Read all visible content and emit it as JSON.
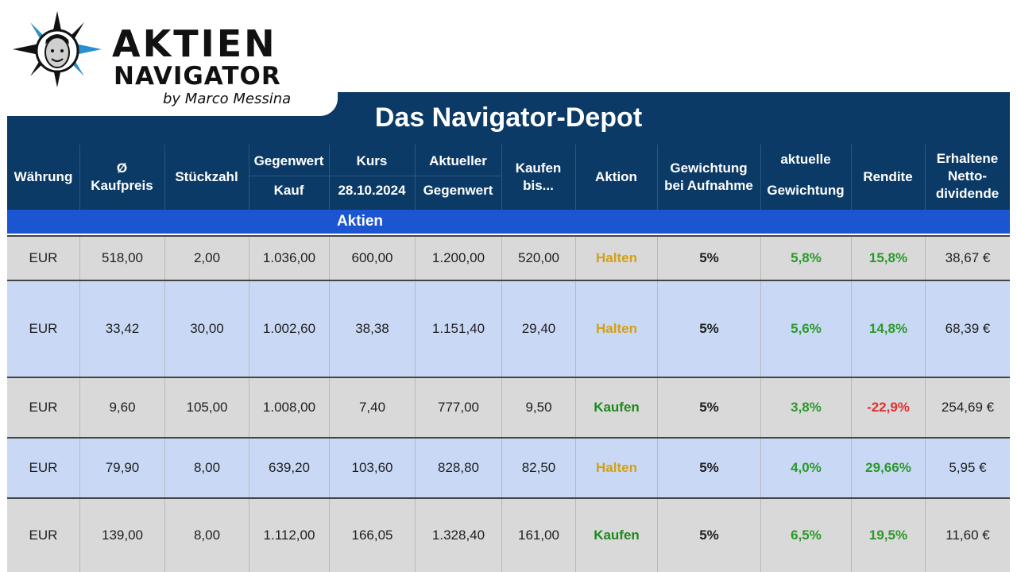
{
  "brand": {
    "line1": "AKTIEN",
    "line2": "NAVIGATOR",
    "line3": "by Marco Messina"
  },
  "table": {
    "title": "Das Navigator-Depot",
    "section_label": "Aktien",
    "headers": {
      "waehrung": "Währung",
      "kaufpreis_1": "Ø",
      "kaufpreis_2": "Kaufpreis",
      "stueckzahl": "Stückzahl",
      "gegenwert_kauf_1": "Gegenwert",
      "gegenwert_kauf_2": "Kauf",
      "kurs_1": "Kurs",
      "kurs_2": "28.10.2024",
      "akt_gegenwert_1": "Aktueller",
      "akt_gegenwert_2": "Gegenwert",
      "kaufen_bis_1": "Kaufen",
      "kaufen_bis_2": "bis...",
      "aktion": "Aktion",
      "gewichtung_1": "Gewichtung",
      "gewichtung_2": "bei Aufnahme",
      "akt_gewichtung_1": "aktuelle",
      "akt_gewichtung_2": "Gewichtung",
      "rendite": "Rendite",
      "dividende_1": "Erhaltene",
      "dividende_2": "Netto-",
      "dividende_3": "dividende"
    },
    "rows": [
      [
        "EUR",
        "518,00",
        "2,00",
        "1.036,00",
        "600,00",
        "1.200,00",
        "520,00",
        "Halten",
        "5%",
        "5,8%",
        "15,8%",
        "38,67 €"
      ],
      [
        "EUR",
        "33,42",
        "30,00",
        "1.002,60",
        "38,38",
        "1.151,40",
        "29,40",
        "Halten",
        "5%",
        "5,6%",
        "14,8%",
        "68,39 €"
      ],
      [
        "EUR",
        "9,60",
        "105,00",
        "1.008,00",
        "7,40",
        "777,00",
        "9,50",
        "Kaufen",
        "5%",
        "3,8%",
        "-22,9%",
        "254,69 €"
      ],
      [
        "EUR",
        "79,90",
        "8,00",
        "639,20",
        "103,60",
        "828,80",
        "82,50",
        "Halten",
        "5%",
        "4,0%",
        "29,66%",
        "5,95 €"
      ],
      [
        "EUR",
        "139,00",
        "8,00",
        "1.112,00",
        "166,05",
        "1.328,40",
        "161,00",
        "Kaufen",
        "5%",
        "6,5%",
        "19,5%",
        "11,60 €"
      ]
    ]
  },
  "colors": {
    "header_bg": "#0c3a66",
    "section_bg": "#1b55d2",
    "row_gray": "#d9d9d9",
    "row_blue": "#c9d9f5",
    "halten": "#d4a017",
    "kaufen": "#1e8a1e",
    "positive": "#2a9a2a",
    "negative": "#e03030"
  }
}
